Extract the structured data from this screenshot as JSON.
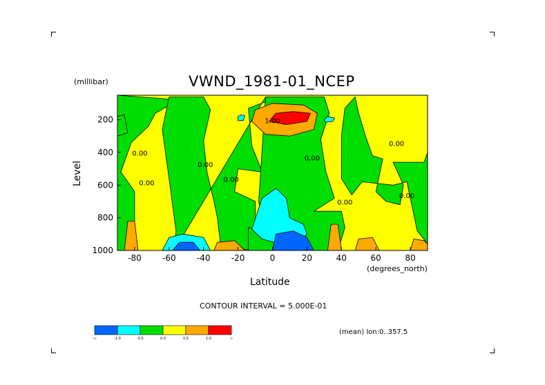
{
  "chart_data": {
    "type": "heatmap",
    "title": "VWND_1981-01_NCEP",
    "ylabel": "Level",
    "yunit": "(millibar)",
    "xlabel": "Latitude",
    "xunit": "(degrees_north)",
    "xlim": [
      -90,
      90
    ],
    "ylim": [
      1000,
      50
    ],
    "y_reversed": true,
    "x_ticks": [
      -80,
      -60,
      -40,
      -20,
      0,
      20,
      40,
      60,
      80
    ],
    "x_tick_labels": [
      "-80",
      "-60",
      "-40",
      "-20",
      "0",
      "20",
      "40",
      "60",
      "80"
    ],
    "y_ticks": [
      200,
      400,
      600,
      800,
      1000
    ],
    "y_tick_labels": [
      "200",
      "400",
      "600",
      "800",
      "1000"
    ],
    "contour_interval_label": "CONTOUR INTERVAL = 5.000E-01",
    "subtitle": "(mean) lon:0..357.5",
    "contour_labels": [
      {
        "text": "0.00",
        "lat": -77,
        "level": 420
      },
      {
        "text": "0.00",
        "lat": -73,
        "level": 600
      },
      {
        "text": "0.00",
        "lat": -39,
        "level": 490
      },
      {
        "text": "0.00",
        "lat": -24,
        "level": 580
      },
      {
        "text": "1.00",
        "lat": 0,
        "level": 220
      },
      {
        "text": "0.00",
        "lat": 23,
        "level": 450
      },
      {
        "text": "0.00",
        "lat": 42,
        "level": 720
      },
      {
        "text": "0.00",
        "lat": 72,
        "level": 360
      },
      {
        "text": "0.00",
        "lat": 78,
        "level": 680
      }
    ],
    "color_bar": {
      "colors": [
        "#0066ff",
        "#00ffff",
        "#00dd00",
        "#ffff00",
        "#ffaa00",
        "#ff0000"
      ],
      "tick_labels": [
        "-∞",
        "-1.0",
        "-0.5",
        "0.0",
        "0.5",
        "1.0",
        "∞"
      ]
    },
    "regions": [
      {
        "name": "green band SH",
        "color": "#00dd00",
        "points": [
          [
            -90,
            50
          ],
          [
            -90,
            1000
          ],
          [
            -80,
            1000
          ],
          [
            -80,
            640
          ],
          [
            -88,
            520
          ],
          [
            -82,
            340
          ],
          [
            -72,
            240
          ],
          [
            -68,
            160
          ],
          [
            -58,
            100
          ],
          [
            -52,
            80
          ]
        ]
      },
      {
        "name": "green band midlat",
        "color": "#00dd00",
        "points": [
          [
            -57,
            1000
          ],
          [
            -56,
            880
          ],
          [
            -60,
            560
          ],
          [
            -64,
            260
          ],
          [
            -60,
            60
          ],
          [
            -40,
            60
          ],
          [
            -36,
            140
          ],
          [
            -40,
            330
          ],
          [
            -38,
            520
          ],
          [
            -34,
            700
          ],
          [
            -32,
            800
          ],
          [
            -30,
            980
          ],
          [
            -10,
            1000
          ],
          [
            -10,
            700
          ],
          [
            -22,
            640
          ],
          [
            -20,
            500
          ],
          [
            -6,
            520
          ],
          [
            -12,
            360
          ],
          [
            -14,
            130
          ],
          [
            -4,
            90
          ],
          [
            -4,
            60
          ]
        ]
      },
      {
        "name": "green band tropics",
        "color": "#00dd00",
        "points": [
          [
            -4,
            60
          ],
          [
            30,
            60
          ],
          [
            33,
            160
          ],
          [
            28,
            320
          ],
          [
            31,
            520
          ],
          [
            36,
            680
          ],
          [
            24,
            760
          ],
          [
            40,
            760
          ],
          [
            42,
            860
          ],
          [
            38,
            1000
          ],
          [
            -14,
            1000
          ],
          [
            -14,
            860
          ],
          [
            -4,
            880
          ],
          [
            -8,
            700
          ]
        ]
      },
      {
        "name": "green band NH",
        "color": "#00dd00",
        "points": [
          [
            48,
            60
          ],
          [
            50,
            160
          ],
          [
            54,
            300
          ],
          [
            58,
            420
          ],
          [
            64,
            440
          ],
          [
            60,
            640
          ],
          [
            66,
            700
          ],
          [
            74,
            720
          ],
          [
            76,
            600
          ],
          [
            70,
            460
          ],
          [
            88,
            460
          ],
          [
            90,
            400
          ],
          [
            90,
            960
          ],
          [
            84,
            880
          ],
          [
            78,
            580
          ],
          [
            70,
            600
          ],
          [
            52,
            580
          ],
          [
            46,
            660
          ],
          [
            40,
            560
          ],
          [
            40,
            300
          ],
          [
            42,
            130
          ]
        ]
      },
      {
        "name": "green SH polar",
        "color": "#00dd00",
        "points": [
          [
            -86,
            170
          ],
          [
            -90,
            180
          ],
          [
            -90,
            300
          ],
          [
            -84,
            280
          ]
        ]
      },
      {
        "name": "cyan tropical",
        "color": "#00ffff",
        "points": [
          [
            -12,
            870
          ],
          [
            -6,
            680
          ],
          [
            2,
            620
          ],
          [
            8,
            680
          ],
          [
            10,
            800
          ],
          [
            18,
            840
          ],
          [
            20,
            900
          ],
          [
            14,
            960
          ],
          [
            4,
            960
          ],
          [
            -6,
            930
          ]
        ]
      },
      {
        "name": "cyan SH",
        "color": "#00ffff",
        "points": [
          [
            -64,
            1000
          ],
          [
            -60,
            920
          ],
          [
            -52,
            900
          ],
          [
            -40,
            920
          ],
          [
            -36,
            1000
          ]
        ]
      },
      {
        "name": "blue tropical",
        "color": "#0066ff",
        "points": [
          [
            0,
            1000
          ],
          [
            2,
            900
          ],
          [
            12,
            880
          ],
          [
            20,
            920
          ],
          [
            24,
            1000
          ]
        ]
      },
      {
        "name": "blue SH",
        "color": "#0066ff",
        "points": [
          [
            -58,
            1000
          ],
          [
            -54,
            950
          ],
          [
            -46,
            950
          ],
          [
            -42,
            1000
          ]
        ]
      },
      {
        "name": "cyan 25N",
        "color": "#00ffff",
        "points": [
          [
            30,
            200
          ],
          [
            32,
            180
          ],
          [
            36,
            190
          ],
          [
            35,
            210
          ],
          [
            31,
            215
          ]
        ]
      },
      {
        "name": "cyan 5S",
        "color": "#00ffff",
        "points": [
          [
            -20,
            180
          ],
          [
            -18,
            170
          ],
          [
            -16,
            175
          ],
          [
            -17,
            205
          ],
          [
            -20,
            205
          ]
        ]
      },
      {
        "name": "orange jet",
        "color": "#ffaa00",
        "points": [
          [
            -12,
            210
          ],
          [
            -10,
            140
          ],
          [
            0,
            100
          ],
          [
            18,
            110
          ],
          [
            26,
            160
          ],
          [
            24,
            260
          ],
          [
            10,
            300
          ],
          [
            -4,
            290
          ]
        ]
      },
      {
        "name": "red jet",
        "color": "#ff0000",
        "points": [
          [
            -2,
            210
          ],
          [
            2,
            160
          ],
          [
            12,
            150
          ],
          [
            22,
            160
          ],
          [
            20,
            210
          ],
          [
            8,
            230
          ]
        ]
      },
      {
        "name": "orange SH sfc",
        "color": "#ffaa00",
        "points": [
          [
            -86,
            1000
          ],
          [
            -84,
            820
          ],
          [
            -80,
            820
          ],
          [
            -78,
            1000
          ]
        ]
      },
      {
        "name": "orange 20S sfc",
        "color": "#ffaa00",
        "points": [
          [
            -34,
            1000
          ],
          [
            -32,
            950
          ],
          [
            -22,
            940
          ],
          [
            -16,
            1000
          ]
        ]
      },
      {
        "name": "orange 40N sfc",
        "color": "#ffaa00",
        "points": [
          [
            32,
            1000
          ],
          [
            34,
            840
          ],
          [
            38,
            840
          ],
          [
            40,
            1000
          ]
        ]
      },
      {
        "name": "orange 55N sfc",
        "color": "#ffaa00",
        "points": [
          [
            48,
            1000
          ],
          [
            50,
            930
          ],
          [
            58,
            920
          ],
          [
            62,
            1000
          ]
        ]
      },
      {
        "name": "orange 85N sfc",
        "color": "#ffaa00",
        "points": [
          [
            80,
            1000
          ],
          [
            82,
            930
          ],
          [
            88,
            940
          ],
          [
            90,
            960
          ],
          [
            90,
            1000
          ]
        ]
      }
    ]
  }
}
